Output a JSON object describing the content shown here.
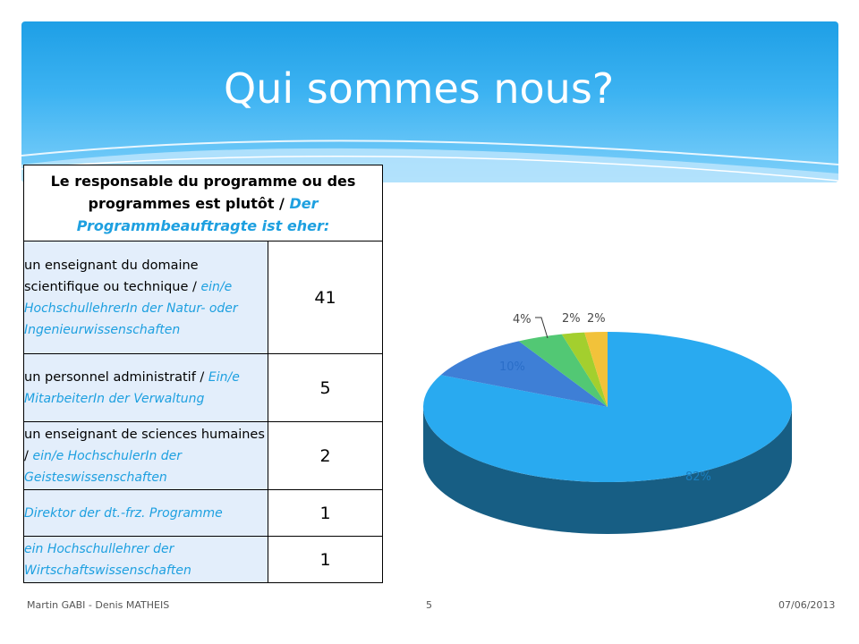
{
  "title": "Qui sommes nous?",
  "table": {
    "header_fr": "Le responsable du programme ou des programmes est plutôt / ",
    "header_de": "Der Programmbeauftragte ist eher:",
    "rows": [
      {
        "fr": "un enseignant du domaine scientifique ou technique / ",
        "de": "ein/e HochschullehrerIn der Natur- oder Ingenieurwissenschaften",
        "value": "41"
      },
      {
        "fr": "un personnel administratif / ",
        "de": "Ein/e MitarbeiterIn der Verwaltung",
        "value": "5"
      },
      {
        "fr": "un enseignant de sciences humaines / ",
        "de": "ein/e HochschulerIn der Geisteswissenschaften",
        "value": "2"
      },
      {
        "fr": "",
        "de": "Direktor der dt.-frz. Programme",
        "value": "1"
      },
      {
        "fr": "",
        "de": "ein Hochschullehrer der Wirtschaftswissenschaften",
        "value": "1"
      }
    ]
  },
  "chart_data": {
    "type": "pie",
    "values": [
      41,
      5,
      2,
      1,
      1
    ],
    "data_labels": [
      "82%",
      "10%",
      "4%",
      "2%",
      "2%"
    ],
    "colors": [
      "#29aaf0",
      "#3e7fd6",
      "#52c874",
      "#a3cf2e",
      "#f2c23a"
    ],
    "style": "3d"
  },
  "footer": {
    "authors": "Martin GABI - Denis MATHEIS",
    "page": "5",
    "date": "07/06/2013"
  }
}
